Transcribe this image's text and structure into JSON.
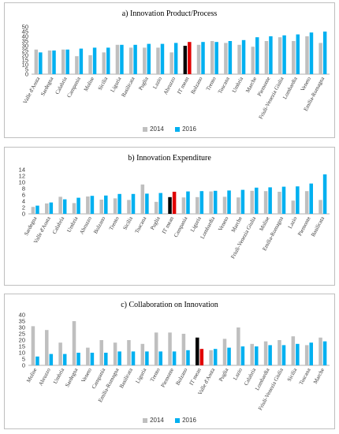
{
  "chart_data": [
    {
      "type": "bar",
      "title": "a) Innovation Product/Process",
      "ylim": [
        0,
        50
      ],
      "yticks": [
        0,
        5,
        10,
        15,
        20,
        25,
        30,
        35,
        40,
        45,
        50
      ],
      "categories": [
        "Valle d'Aosta",
        "Sardegna",
        "Calabria",
        "Campania",
        "Molise",
        "Sicilia",
        "Liguria",
        "Basilicata",
        "Puglia",
        "Lazio",
        "Abruzzo",
        "IT mean",
        "Bolzano",
        "Trento",
        "Toscana",
        "Umbria",
        "Marche",
        "Piemonte",
        "Friuli-Venezia Giulia",
        "Lombardia",
        "Veneto",
        "Emilia-Romagna"
      ],
      "highlight": "IT mean",
      "series": [
        {
          "name": "2014",
          "values": [
            26,
            25,
            26,
            19,
            20,
            23,
            31,
            28,
            28,
            28,
            23,
            30,
            31,
            35,
            33,
            31,
            29,
            35,
            39,
            35,
            40,
            33
          ]
        },
        {
          "name": "2016",
          "values": [
            23,
            25,
            26,
            27,
            28,
            28,
            31,
            31,
            32,
            32,
            33,
            34,
            34,
            34,
            35,
            36,
            39,
            40,
            41,
            42,
            44,
            45
          ]
        }
      ],
      "grid": false,
      "legend": "bottom"
    },
    {
      "type": "bar",
      "title": "b) Innovation Expenditure",
      "ylim": [
        0,
        14
      ],
      "yticks": [
        0,
        2,
        4,
        6,
        8,
        10,
        12,
        14
      ],
      "categories": [
        "Sardegna",
        "Valle d'Aosta",
        "Calabria",
        "Umbria",
        "Abruzzo",
        "Bolzano",
        "Trento",
        "Sicilia",
        "Toscana",
        "Puglia",
        "IT mean",
        "Campania",
        "Liguria",
        "Lombardia",
        "Veneto",
        "Marche",
        "Friuli-Venezia Giulia",
        "Molise",
        "Emilia-Romagna",
        "Lazio",
        "Piemonte",
        "Basilicata"
      ],
      "highlight": "IT mean",
      "series": [
        {
          "name": "2014",
          "values": [
            2.2,
            3.3,
            5.4,
            3.4,
            5.5,
            4.5,
            4.9,
            4.4,
            9.3,
            3.8,
            5.3,
            5.2,
            5.3,
            7.1,
            5.4,
            5.2,
            7.3,
            7.2,
            7.0,
            4.2,
            7.2,
            4.4
          ]
        },
        {
          "name": "2016",
          "values": [
            2.6,
            3.6,
            4.6,
            5.1,
            5.7,
            5.8,
            6.3,
            6.3,
            6.4,
            6.6,
            7.0,
            7.1,
            7.2,
            7.3,
            7.4,
            7.6,
            8.3,
            8.4,
            8.6,
            8.7,
            9.6,
            12.5
          ]
        }
      ],
      "grid": false,
      "legend": "bottom"
    },
    {
      "type": "bar",
      "title": "c) Collaboration on Innovation",
      "ylim": [
        0,
        40
      ],
      "yticks": [
        0,
        5,
        10,
        15,
        20,
        25,
        30,
        35,
        40
      ],
      "categories": [
        "Molise",
        "Abruzzo",
        "Umbria",
        "Sardegna",
        "Veneto",
        "Campania",
        "Emilia-Romagna",
        "Basilicata",
        "Liguria",
        "Trento",
        "Piemonte",
        "Bolzano",
        "IT mean",
        "Valle d'Aosta",
        "Puglia",
        "Lazio",
        "Calabria",
        "Lombardia",
        "Friuli-Venezia Giulia",
        "Sicilia",
        "Toscana",
        "Marche"
      ],
      "highlight": "IT mean",
      "series": [
        {
          "name": "2014",
          "values": [
            31,
            28,
            18,
            35,
            14,
            20,
            18,
            20,
            17,
            26,
            26,
            25,
            22,
            12,
            21,
            30,
            17,
            19,
            20,
            23,
            16,
            22
          ]
        },
        {
          "name": "2016",
          "values": [
            7,
            9,
            9,
            10,
            10,
            10,
            11,
            11,
            11,
            11,
            11,
            12,
            13,
            13,
            14,
            15,
            15,
            16,
            16,
            17,
            18,
            19
          ]
        }
      ],
      "grid": false,
      "legend": "bottom"
    }
  ],
  "colors": {
    "series_2014": "#bfbfbf",
    "series_2016": "#00b0f0",
    "highlight_2014": "#000000",
    "highlight_2016": "#e00000",
    "axis": "#999999",
    "text": "#333333"
  }
}
